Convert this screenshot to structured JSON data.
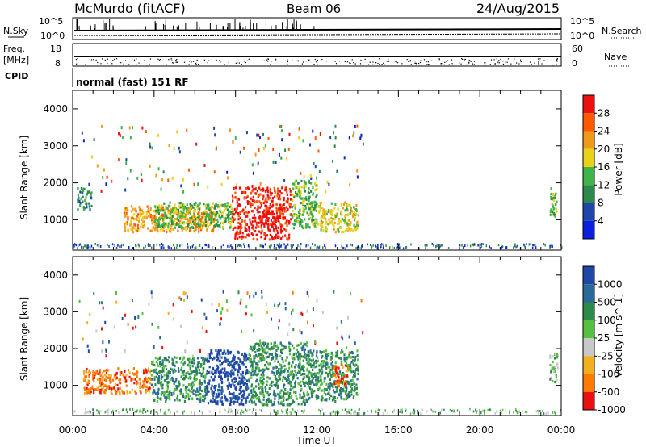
{
  "header": {
    "station": "McMurdo (fitACF)",
    "beam": "Beam 06",
    "date": "24/Aug/2015"
  },
  "top_panels": {
    "nsky_label": "N.Sky",
    "nsearch_label": "N.Search",
    "nsky_ticks": [
      "10^5",
      "10^0"
    ],
    "nsearch_ticks": [
      "10^5",
      "10^0"
    ],
    "freq_label": "Freq.",
    "freq_unit": "[MHz]",
    "freq_ticks": [
      "18",
      "8"
    ],
    "nave_label": "Nave",
    "nave_ticks": [
      "60",
      "0"
    ],
    "cpid_label": "CPID",
    "cpid_value": "normal (fast) 151 RF"
  },
  "chart_data": [
    {
      "type": "heatmap",
      "name": "power",
      "ylabel": "Slant Range [km]",
      "colorbar_label": "Power [dB]",
      "yticks": [
        "1000",
        "2000",
        "3000",
        "4000"
      ],
      "ylim": [
        180,
        4500
      ],
      "colorbar_ticks": [
        "4",
        "8",
        "12",
        "16",
        "20",
        "24",
        "28"
      ],
      "colors": [
        "#0b1fe0",
        "#1f47a8",
        "#2e8a4a",
        "#3eb44a",
        "#e8d21a",
        "#f09a1a",
        "#ff5a00",
        "#ee1010"
      ],
      "regions": [
        {
          "t0": 2.5,
          "t1": 7.0,
          "r0": 700,
          "r1": 1400,
          "level": 5
        },
        {
          "t0": 4.0,
          "t1": 7.8,
          "r0": 800,
          "r1": 1500,
          "level": 3
        },
        {
          "t0": 7.8,
          "t1": 10.7,
          "r0": 500,
          "r1": 1900,
          "level": 7
        },
        {
          "t0": 10.7,
          "t1": 12.0,
          "r0": 800,
          "r1": 2100,
          "level": 3
        },
        {
          "t0": 12.0,
          "t1": 14.0,
          "r0": 700,
          "r1": 1500,
          "level": 4
        },
        {
          "t0": 0.2,
          "t1": 0.9,
          "r0": 1300,
          "r1": 1900,
          "level": 2
        },
        {
          "t0": 23.4,
          "t1": 23.8,
          "r0": 1100,
          "r1": 1900,
          "level": 3
        }
      ],
      "x_ticks": [
        "00:00",
        "04:00",
        "08:00",
        "12:00",
        "16:00",
        "20:00",
        "00:00"
      ],
      "xlabel": ""
    },
    {
      "type": "heatmap",
      "name": "velocity",
      "ylabel": "Slant Range [km]",
      "colorbar_label": "Velocity [m s^-1]",
      "yticks": [
        "1000",
        "2000",
        "3000",
        "4000"
      ],
      "ylim": [
        180,
        4500
      ],
      "colorbar_ticks": [
        "1000",
        "500",
        "100",
        "25",
        "-25",
        "-100",
        "-500",
        "-1000"
      ],
      "colors": [
        "#1f47a8",
        "#2a6a9a",
        "#2e8a4a",
        "#57c040",
        "#c8c8c8",
        "#f0b020",
        "#ff7a00",
        "#e81010"
      ],
      "regions": [
        {
          "t0": 0.5,
          "t1": 3.8,
          "r0": 800,
          "r1": 1500,
          "level": 6
        },
        {
          "t0": 3.8,
          "t1": 6.5,
          "r0": 600,
          "r1": 1800,
          "level": 2
        },
        {
          "t0": 6.5,
          "t1": 8.6,
          "r0": 500,
          "r1": 2000,
          "level": 0
        },
        {
          "t0": 8.6,
          "t1": 11.5,
          "r0": 500,
          "r1": 2200,
          "level": 2
        },
        {
          "t0": 11.5,
          "t1": 14.0,
          "r0": 600,
          "r1": 2000,
          "level": 2
        },
        {
          "t0": 12.8,
          "t1": 13.5,
          "r0": 1000,
          "r1": 1600,
          "level": 6
        },
        {
          "t0": 23.4,
          "t1": 23.8,
          "r0": 1100,
          "r1": 1900,
          "level": 3
        }
      ],
      "x_ticks": [
        "00:00",
        "04:00",
        "08:00",
        "12:00",
        "16:00",
        "20:00",
        "00:00"
      ],
      "xlabel": "Time UT"
    }
  ]
}
